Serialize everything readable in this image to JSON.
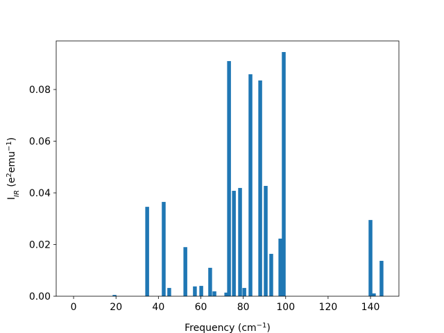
{
  "chart_data": {
    "type": "bar",
    "xlabel": [
      {
        "text": "Frequency (cm"
      },
      {
        "text": "−1",
        "style": "sup"
      },
      {
        "text": ")"
      }
    ],
    "ylabel": [
      {
        "text": "I"
      },
      {
        "text": "IR",
        "style": "sub"
      },
      {
        "text": " (e"
      },
      {
        "text": "2",
        "style": "sup"
      },
      {
        "text": "emu"
      },
      {
        "text": "−1",
        "style": "sup"
      },
      {
        "text": ")"
      }
    ],
    "x": [
      19.3,
      34.7,
      42.5,
      45.1,
      52.7,
      57.2,
      60.2,
      64.4,
      66.4,
      72,
      73.3,
      75.6,
      78.5,
      80.5,
      83.4,
      88,
      90.6,
      93.2,
      97.5,
      99.1,
      140,
      141.6,
      145.2
    ],
    "values": [
      0.0005,
      0.0346,
      0.0365,
      0.0032,
      0.019,
      0.0038,
      0.004,
      0.011,
      0.0019,
      0.0014,
      0.091,
      0.0408,
      0.0419,
      0.0032,
      0.0859,
      0.0835,
      0.0427,
      0.0164,
      0.0223,
      0.0945,
      0.0295,
      0.0011,
      0.0137
    ],
    "color": "#1f77b4",
    "xlim": [
      -8.2,
      153.4
    ],
    "xticks": [
      0,
      20,
      40,
      60,
      80,
      100,
      120,
      140
    ],
    "ylim": [
      0,
      0.0988
    ],
    "yticks": [
      {
        "value": 0,
        "label": "0.00"
      },
      0.02,
      0.04,
      0.06,
      0.08
    ],
    "grid": false
  }
}
